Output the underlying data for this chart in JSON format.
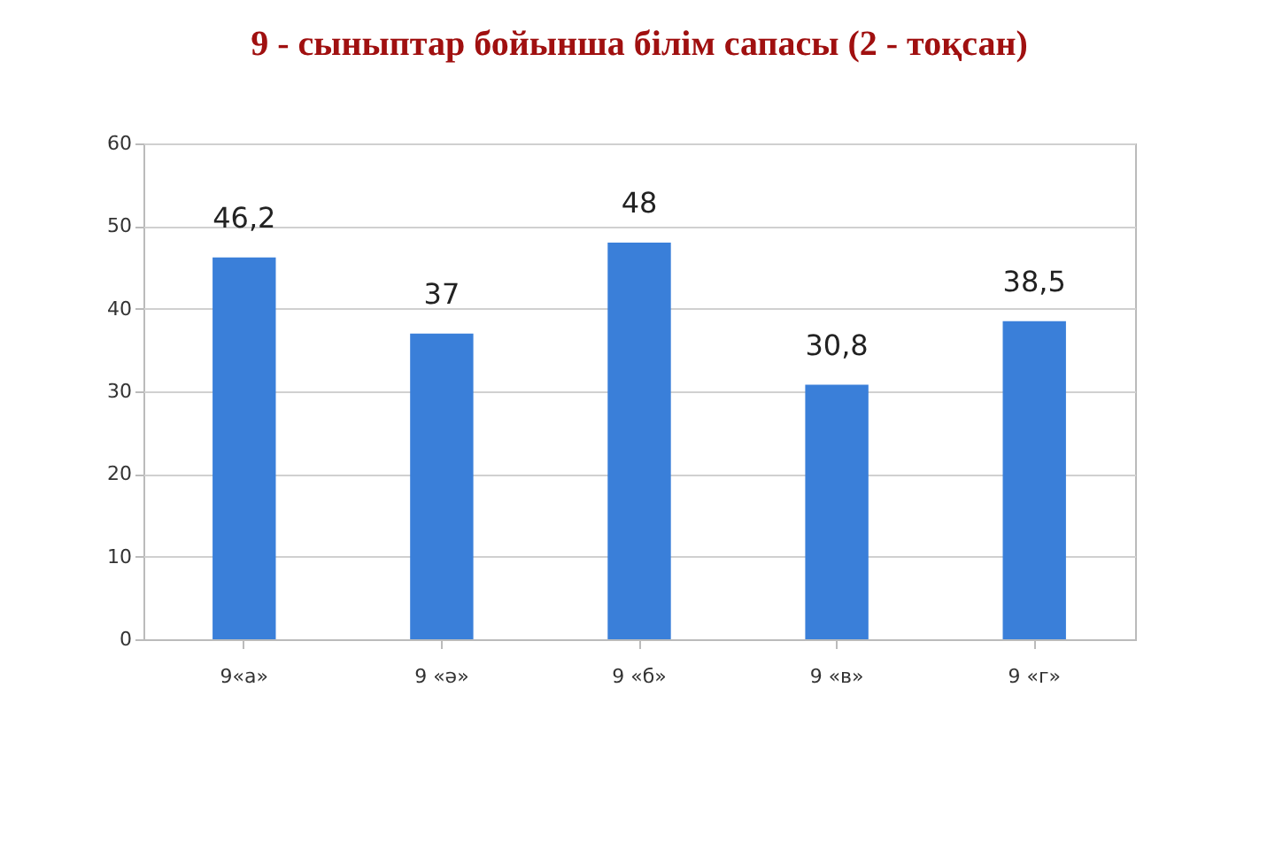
{
  "chart_data": {
    "type": "bar",
    "title": "9 - сыныптар бойынша білім сапасы (2 - тоқсан)",
    "categories": [
      "9«а»",
      "9 «ә»",
      "9 «б»",
      "9 «в»",
      "9 «г»"
    ],
    "values": [
      46.2,
      37,
      48,
      30.8,
      38.5
    ],
    "value_labels": [
      "46,2",
      "37",
      "48",
      "30,8",
      "38,5"
    ],
    "color": "#3a7fd9",
    "ylim": [
      0,
      60
    ],
    "yticks": [
      0,
      10,
      20,
      30,
      40,
      50,
      60
    ],
    "grid": "y"
  }
}
